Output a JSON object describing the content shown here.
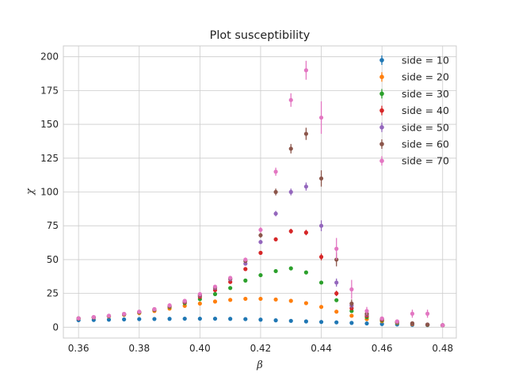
{
  "chart_data": {
    "type": "scatter",
    "title": "Plot susceptibility",
    "xlabel": "β",
    "ylabel": "χ",
    "xlim": [
      0.355,
      0.4845
    ],
    "ylim": [
      -8,
      208
    ],
    "xticks": [
      0.36,
      0.38,
      0.4,
      0.42,
      0.44,
      0.46,
      0.48
    ],
    "xtick_labels": [
      "0.36",
      "0.38",
      "0.40",
      "0.42",
      "0.44",
      "0.46",
      "0.48"
    ],
    "yticks": [
      0,
      25,
      50,
      75,
      100,
      125,
      150,
      175,
      200
    ],
    "ytick_labels": [
      "0",
      "25",
      "50",
      "75",
      "100",
      "125",
      "150",
      "175",
      "200"
    ],
    "grid": true,
    "legend_position": "top-right",
    "error_bars": true,
    "series": [
      {
        "name": "side = 10",
        "color": "#1f77b4",
        "x": [
          0.36,
          0.365,
          0.37,
          0.375,
          0.38,
          0.385,
          0.39,
          0.395,
          0.4,
          0.405,
          0.41,
          0.415,
          0.42,
          0.425,
          0.43,
          0.435,
          0.44,
          0.445,
          0.45,
          0.455,
          0.46,
          0.465,
          0.47,
          0.475,
          0.48
        ],
        "y": [
          5.2,
          5.4,
          5.6,
          5.8,
          6.0,
          6.1,
          6.2,
          6.3,
          6.3,
          6.3,
          6.2,
          6.0,
          5.6,
          5.1,
          4.7,
          4.3,
          3.9,
          3.6,
          3.2,
          2.8,
          2.4,
          2.1,
          1.8,
          1.6,
          1.4
        ],
        "err": [
          0.2,
          0.2,
          0.2,
          0.2,
          0.2,
          0.2,
          0.2,
          0.2,
          0.2,
          0.2,
          0.2,
          0.3,
          0.3,
          0.3,
          0.3,
          0.3,
          0.3,
          0.3,
          0.3,
          0.3,
          0.3,
          0.3,
          0.3,
          0.3,
          0.3
        ]
      },
      {
        "name": "side = 20",
        "color": "#ff7f0e",
        "x": [
          0.36,
          0.365,
          0.37,
          0.375,
          0.38,
          0.385,
          0.39,
          0.395,
          0.4,
          0.405,
          0.41,
          0.415,
          0.42,
          0.425,
          0.43,
          0.435,
          0.44,
          0.445,
          0.45,
          0.455,
          0.46,
          0.465,
          0.47,
          0.475,
          0.48
        ],
        "y": [
          6.5,
          7.2,
          8.0,
          9.2,
          10.5,
          12.0,
          13.8,
          15.8,
          17.5,
          19.0,
          20.2,
          21.0,
          21.0,
          20.5,
          19.5,
          17.8,
          15.0,
          11.5,
          8.5,
          6.0,
          4.5,
          3.2,
          2.3,
          1.8,
          1.4
        ],
        "err": [
          0.3,
          0.3,
          0.3,
          0.3,
          0.3,
          0.3,
          0.3,
          0.4,
          0.4,
          0.4,
          0.4,
          0.5,
          0.5,
          0.5,
          0.5,
          0.5,
          0.6,
          0.6,
          0.6,
          0.5,
          0.5,
          0.4,
          0.4,
          0.3,
          0.3
        ]
      },
      {
        "name": "side = 30",
        "color": "#2ca02c",
        "x": [
          0.36,
          0.365,
          0.37,
          0.375,
          0.38,
          0.385,
          0.39,
          0.395,
          0.4,
          0.405,
          0.41,
          0.415,
          0.42,
          0.425,
          0.43,
          0.435,
          0.44,
          0.445,
          0.45,
          0.455,
          0.46,
          0.465,
          0.47,
          0.475,
          0.48
        ],
        "y": [
          6.5,
          7.3,
          8.2,
          9.5,
          11.0,
          12.8,
          15.0,
          17.8,
          20.8,
          24.5,
          29.0,
          34.5,
          38.5,
          41.5,
          43.5,
          40.5,
          33.0,
          20.0,
          12.0,
          7.5,
          5.0,
          3.5,
          2.5,
          1.8,
          1.4
        ],
        "err": [
          0.3,
          0.3,
          0.3,
          0.3,
          0.3,
          0.3,
          0.4,
          0.4,
          0.5,
          0.5,
          0.6,
          0.8,
          0.8,
          0.9,
          1.0,
          1.0,
          1.0,
          0.9,
          0.8,
          0.6,
          0.5,
          0.4,
          0.4,
          0.3,
          0.3
        ]
      },
      {
        "name": "side = 40",
        "color": "#d62728",
        "x": [
          0.36,
          0.365,
          0.37,
          0.375,
          0.38,
          0.385,
          0.39,
          0.395,
          0.4,
          0.405,
          0.41,
          0.415,
          0.42,
          0.425,
          0.43,
          0.435,
          0.44,
          0.445,
          0.45,
          0.455,
          0.46,
          0.465,
          0.47,
          0.475,
          0.48
        ],
        "y": [
          6.5,
          7.3,
          8.3,
          9.6,
          11.2,
          13.0,
          15.5,
          18.5,
          22.5,
          27.5,
          33.5,
          43.0,
          55.0,
          65.0,
          71.0,
          70.0,
          52.0,
          25.0,
          14.0,
          8.5,
          5.5,
          3.8,
          2.6,
          1.9,
          1.4
        ],
        "err": [
          0.3,
          0.3,
          0.3,
          0.3,
          0.3,
          0.4,
          0.4,
          0.5,
          0.5,
          0.6,
          0.8,
          1.0,
          1.2,
          1.5,
          1.8,
          2.0,
          2.5,
          2.0,
          1.2,
          0.8,
          0.6,
          0.5,
          0.4,
          0.3,
          0.3
        ]
      },
      {
        "name": "side = 50",
        "color": "#9467bd",
        "x": [
          0.36,
          0.365,
          0.37,
          0.375,
          0.38,
          0.385,
          0.39,
          0.395,
          0.4,
          0.405,
          0.41,
          0.415,
          0.42,
          0.425,
          0.43,
          0.435,
          0.44,
          0.445,
          0.45,
          0.455,
          0.46,
          0.465,
          0.47,
          0.475,
          0.48
        ],
        "y": [
          6.6,
          7.4,
          8.4,
          9.7,
          11.3,
          13.2,
          15.8,
          19.0,
          23.5,
          29.0,
          35.5,
          47.0,
          63.0,
          84.0,
          100.0,
          104.0,
          75.0,
          33.0,
          16.0,
          9.5,
          6.0,
          4.0,
          2.8,
          2.0,
          1.5
        ],
        "err": [
          0.3,
          0.3,
          0.3,
          0.3,
          0.3,
          0.4,
          0.4,
          0.5,
          0.6,
          0.7,
          0.9,
          1.2,
          1.5,
          2.0,
          2.5,
          3.0,
          4.0,
          3.0,
          2.0,
          1.0,
          0.7,
          0.5,
          0.4,
          0.3,
          0.3
        ]
      },
      {
        "name": "side = 60",
        "color": "#8c564b",
        "x": [
          0.36,
          0.365,
          0.37,
          0.375,
          0.38,
          0.385,
          0.39,
          0.395,
          0.4,
          0.405,
          0.41,
          0.415,
          0.42,
          0.425,
          0.43,
          0.435,
          0.44,
          0.445,
          0.45,
          0.455,
          0.46,
          0.465,
          0.47,
          0.475,
          0.48
        ],
        "y": [
          6.6,
          7.4,
          8.4,
          9.8,
          11.4,
          13.3,
          16.0,
          19.3,
          24.0,
          29.5,
          36.0,
          49.0,
          68.0,
          100.0,
          132.0,
          143.0,
          110.0,
          50.0,
          17.5,
          10.0,
          6.2,
          4.2,
          2.9,
          2.0,
          1.5
        ],
        "err": [
          0.3,
          0.3,
          0.3,
          0.3,
          0.3,
          0.4,
          0.4,
          0.5,
          0.6,
          0.7,
          1.0,
          1.3,
          1.8,
          2.5,
          3.5,
          4.5,
          6.0,
          5.0,
          3.0,
          1.5,
          0.8,
          0.6,
          0.5,
          0.4,
          0.3
        ]
      },
      {
        "name": "side = 70",
        "color": "#e377c2",
        "x": [
          0.36,
          0.365,
          0.37,
          0.375,
          0.38,
          0.385,
          0.39,
          0.395,
          0.4,
          0.405,
          0.41,
          0.415,
          0.42,
          0.425,
          0.43,
          0.435,
          0.44,
          0.445,
          0.45,
          0.455,
          0.46,
          0.465,
          0.47,
          0.475,
          0.48
        ],
        "y": [
          6.6,
          7.5,
          8.5,
          9.9,
          11.5,
          13.4,
          16.2,
          19.5,
          24.5,
          30.0,
          36.5,
          50.0,
          72.0,
          115.0,
          168.0,
          190.0,
          155.0,
          58.0,
          28.0,
          12.0,
          6.5,
          4.3,
          10.0,
          10.0,
          1.5
        ],
        "err": [
          0.3,
          0.3,
          0.3,
          0.3,
          0.3,
          0.4,
          0.4,
          0.5,
          0.6,
          0.8,
          1.0,
          1.5,
          2.0,
          3.0,
          5.0,
          7.0,
          12.0,
          8.0,
          7.0,
          3.0,
          1.0,
          0.8,
          3.0,
          3.0,
          0.4
        ]
      }
    ]
  }
}
